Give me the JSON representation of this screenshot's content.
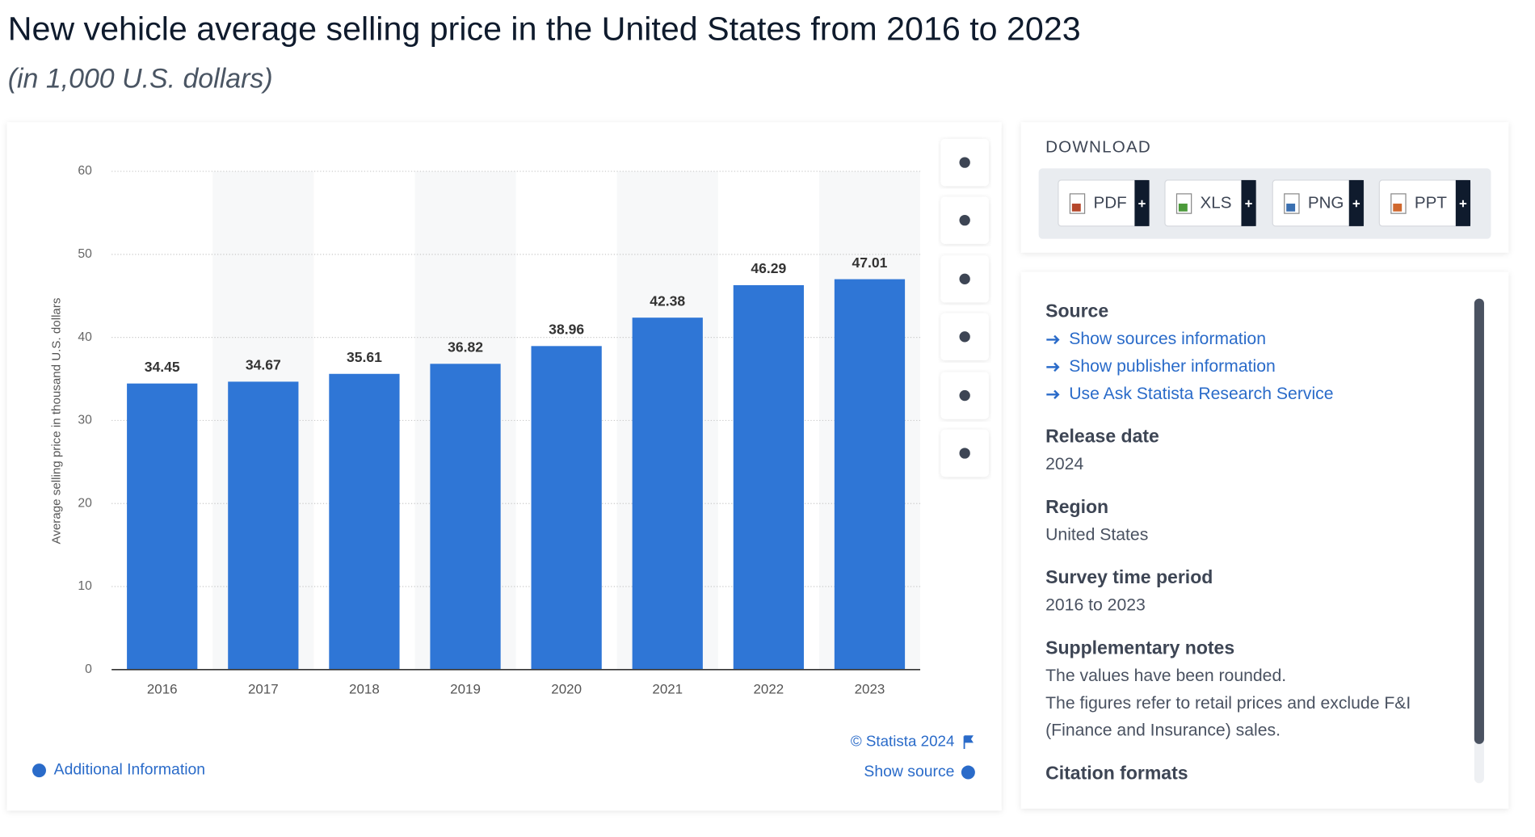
{
  "chart_data": {
    "type": "bar",
    "title": "New vehicle average selling price in the United States from 2016 to 2023",
    "subtitle": "(in 1,000 U.S. dollars)",
    "y_axis_label": "Average selling price in thousand U.S. dollars",
    "categories": [
      "2016",
      "2017",
      "2018",
      "2019",
      "2020",
      "2021",
      "2022",
      "2023"
    ],
    "values": [
      34.45,
      34.67,
      35.61,
      36.82,
      38.96,
      42.38,
      46.29,
      47.01
    ],
    "color": "#2f76d6",
    "ylim": [
      0,
      60
    ],
    "yticks": [
      0,
      10,
      20,
      30,
      40,
      50,
      60
    ],
    "grid": true,
    "credit": "© Statista 2024",
    "show_source": "Show source",
    "additional_info": "Additional Information"
  },
  "download": {
    "heading": "DOWNLOAD",
    "formats": [
      "PDF",
      "XLS",
      "PNG",
      "PPT"
    ]
  },
  "details": {
    "sections": [
      {
        "heading": "Source",
        "links": [
          "Show sources information",
          "Show publisher information",
          "Use Ask Statista Research Service"
        ]
      },
      {
        "heading": "Release date",
        "lines": [
          "2024"
        ]
      },
      {
        "heading": "Region",
        "lines": [
          "United States"
        ]
      },
      {
        "heading": "Survey time period",
        "lines": [
          "2016 to 2023"
        ]
      },
      {
        "heading": "Supplementary notes",
        "lines": [
          "The values have been rounded.",
          "The figures refer to retail prices and exclude F&I",
          "(Finance and Insurance) sales."
        ]
      },
      {
        "heading": "Citation formats"
      }
    ]
  }
}
